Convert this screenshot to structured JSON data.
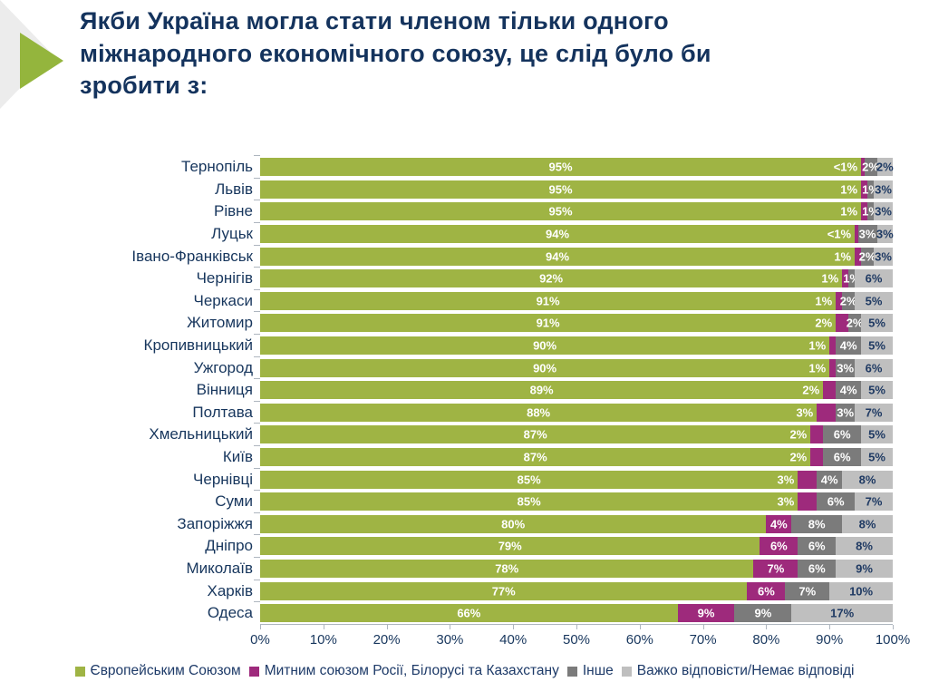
{
  "title": "Якби Україна могла стати членом тільки одного міжнародного економічного союзу, це слід було би зробити з:",
  "colors": {
    "eu_green": "#9fb444",
    "customs_magenta": "#9e2a7c",
    "other_dark_gray": "#7b7b7b",
    "no_answer_light_gray": "#bfbfbf",
    "navy_text": "#17365d",
    "axis_gray": "#aeb6bf",
    "decor_green": "#94b53d",
    "decor_gray": "#ececec"
  },
  "chart_data": {
    "type": "bar",
    "orientation": "horizontal-stacked",
    "title": "Якби Україна могла стати членом тільки одного міжнародного економічного союзу, це слід було би зробити з:",
    "xlim": [
      0,
      100
    ],
    "grid": false,
    "legend_position": "bottom",
    "x_ticks": [
      "0%",
      "10%",
      "20%",
      "30%",
      "40%",
      "50%",
      "60%",
      "70%",
      "80%",
      "90%",
      "100%"
    ],
    "categories": [
      "Тернопіль",
      "Львів",
      "Рівне",
      "Луцьк",
      "Івано-Франківськ",
      "Чернігів",
      "Черкаси",
      "Житомир",
      "Кропивницький",
      "Ужгород",
      "Вінниця",
      "Полтава",
      "Хмельницький",
      "Київ",
      "Чернівці",
      "Суми",
      "Запоріжжя",
      "Дніпро",
      "Миколаїв",
      "Харків",
      "Одеса"
    ],
    "series": [
      {
        "name": "Європейським Союзом",
        "color": "#9fb444",
        "values": [
          95,
          95,
          95,
          94,
          94,
          92,
          91,
          91,
          90,
          90,
          89,
          88,
          87,
          87,
          85,
          85,
          80,
          79,
          78,
          77,
          66
        ],
        "labels": [
          "95%",
          "95%",
          "95%",
          "94%",
          "94%",
          "92%",
          "91%",
          "91%",
          "90%",
          "90%",
          "89%",
          "88%",
          "87%",
          "87%",
          "85%",
          "85%",
          "80%",
          "79%",
          "78%",
          "77%",
          "66%"
        ]
      },
      {
        "name": "Митним союзом Росії, Білорусі та Казахстану",
        "color": "#9e2a7c",
        "values": [
          0.5,
          1,
          1,
          0.5,
          1,
          1,
          1,
          2,
          1,
          1,
          2,
          3,
          2,
          2,
          3,
          3,
          4,
          6,
          7,
          6,
          9
        ],
        "labels": [
          "<1%",
          "1%",
          "1%",
          "<1%",
          "1%",
          "1%",
          "1%",
          "2%",
          "1%",
          "1%",
          "2%",
          "3%",
          "2%",
          "2%",
          "3%",
          "3%",
          "4%",
          "6%",
          "7%",
          "6%",
          "9%"
        ]
      },
      {
        "name": "Інше",
        "color": "#7b7b7b",
        "values": [
          2,
          1,
          1,
          3,
          2,
          1,
          2,
          2,
          4,
          3,
          4,
          3,
          6,
          6,
          4,
          6,
          8,
          6,
          6,
          7,
          9
        ],
        "labels": [
          "2%",
          "1%",
          "1%",
          "3%",
          "2%",
          "1%",
          "2%",
          "2%",
          "4%",
          "3%",
          "4%",
          "3%",
          "6%",
          "6%",
          "4%",
          "6%",
          "8%",
          "6%",
          "6%",
          "7%",
          "9%"
        ]
      },
      {
        "name": "Важко відповісти/Немає відповіді",
        "color": "#bfbfbf",
        "values": [
          2,
          3,
          3,
          3,
          3,
          6,
          5,
          5,
          5,
          6,
          5,
          7,
          5,
          5,
          8,
          7,
          8,
          8,
          9,
          10,
          17
        ],
        "labels": [
          "2%",
          "3%",
          "3%",
          "3%",
          "3%",
          "6%",
          "5%",
          "5%",
          "5%",
          "6%",
          "5%",
          "7%",
          "5%",
          "5%",
          "8%",
          "7%",
          "8%",
          "8%",
          "9%",
          "10%",
          "17%"
        ]
      }
    ]
  }
}
